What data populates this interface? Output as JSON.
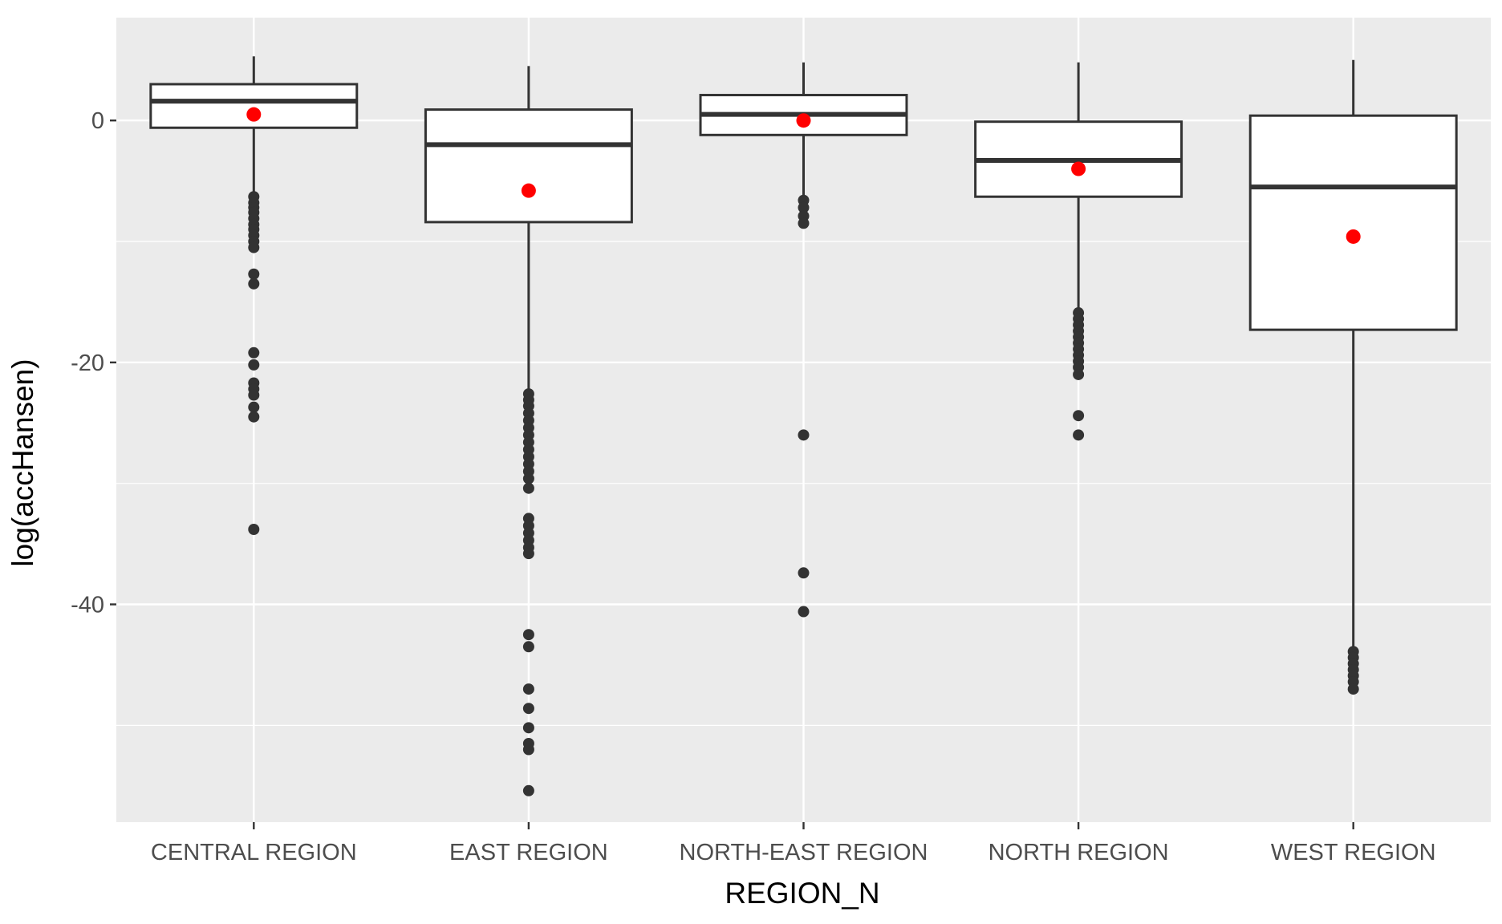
{
  "chart_data": {
    "type": "boxplot",
    "title": "",
    "xlabel": "REGION_N",
    "ylabel": "log(accHansen)",
    "categories": [
      "CENTRAL REGION",
      "EAST REGION",
      "NORTH-EAST REGION",
      "NORTH REGION",
      "WEST REGION"
    ],
    "ylim": [
      -58,
      8.5
    ],
    "y_ticks": [
      0,
      -20,
      -40
    ],
    "y_tick_labels": [
      "0",
      "-20",
      "-40"
    ],
    "y_minor_gridlines": [
      10,
      -10,
      -30,
      -50
    ],
    "grid": true,
    "panel_background": "#EBEBEB",
    "box_fill": "#FFFFFF",
    "box_stroke": "#333333",
    "mean_color": "#FF0000",
    "outlier_color": "#333333",
    "boxes": [
      {
        "category": "CENTRAL REGION",
        "q1": -0.6,
        "median": 1.6,
        "q3": 3.0,
        "whisker_low": -5.9,
        "whisker_high": 5.3,
        "mean": 0.5,
        "outliers": [
          -6.3,
          -6.8,
          -7.2,
          -7.6,
          -8.1,
          -8.6,
          -9.0,
          -9.5,
          -10.0,
          -10.5,
          -12.7,
          -13.5,
          -19.2,
          -20.2,
          -21.7,
          -22.2,
          -22.7,
          -23.7,
          -24.5,
          -33.8
        ]
      },
      {
        "category": "EAST REGION",
        "q1": -8.4,
        "median": -2.0,
        "q3": 0.9,
        "whisker_low": -22.2,
        "whisker_high": 4.5,
        "mean": -5.8,
        "outliers": [
          -22.6,
          -23.1,
          -23.6,
          -24.2,
          -24.8,
          -25.4,
          -26.0,
          -26.6,
          -27.2,
          -27.8,
          -28.4,
          -29.0,
          -29.6,
          -30.4,
          -32.9,
          -33.5,
          -34.1,
          -34.7,
          -35.3,
          -35.8,
          -42.5,
          -43.5,
          -47.0,
          -48.6,
          -50.2,
          -51.5,
          -52.0,
          -55.4
        ]
      },
      {
        "category": "NORTH-EAST REGION",
        "q1": -1.2,
        "median": 0.5,
        "q3": 2.1,
        "whisker_low": -6.2,
        "whisker_high": 4.8,
        "mean": 0.0,
        "outliers": [
          -6.6,
          -7.2,
          -7.9,
          -8.5,
          -26.0,
          -37.4,
          -40.6
        ]
      },
      {
        "category": "NORTH REGION",
        "q1": -6.3,
        "median": -3.3,
        "q3": -0.1,
        "whisker_low": -15.6,
        "whisker_high": 4.8,
        "mean": -4.0,
        "outliers": [
          -15.9,
          -16.4,
          -16.9,
          -17.4,
          -17.9,
          -18.4,
          -18.9,
          -19.4,
          -19.9,
          -20.4,
          -21.0,
          -24.4,
          -26.0
        ]
      },
      {
        "category": "WEST REGION",
        "q1": -17.3,
        "median": -5.5,
        "q3": 0.4,
        "whisker_low": -43.5,
        "whisker_high": 5.0,
        "mean": -9.6,
        "outliers": [
          -43.9,
          -44.4,
          -44.9,
          -45.4,
          -45.9,
          -46.4,
          -47.0
        ]
      }
    ]
  }
}
